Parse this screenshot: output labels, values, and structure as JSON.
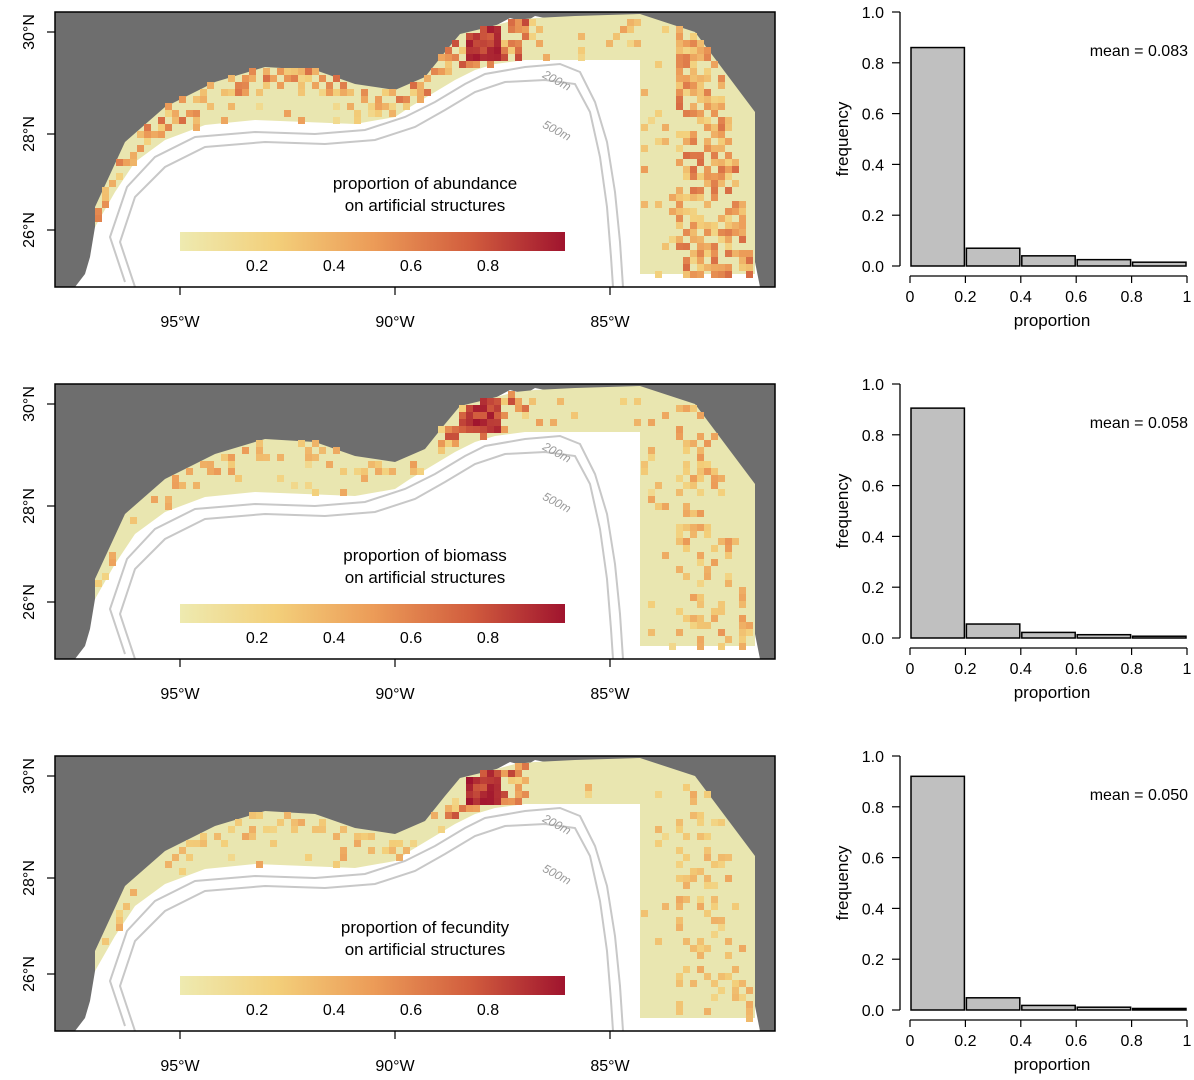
{
  "colors": {
    "land": "#6e6e6e",
    "shelf_base": "#e9e6b0",
    "contour": "#c8c8c8",
    "bar_fill": "#c0c0c0",
    "bar_stroke": "#000000",
    "scale": [
      "#eeeab0",
      "#f3cf7a",
      "#ec9c58",
      "#d25e3e",
      "#a0142e"
    ]
  },
  "contours": {
    "c200": "200m",
    "c500": "500m"
  },
  "map_axes": {
    "x_ticks": [
      "95°W",
      "90°W",
      "85°W"
    ],
    "y_ticks": [
      "30°N",
      "28°N",
      "26°N"
    ]
  },
  "hist_axes": {
    "x_ticks": [
      "0",
      "0.2",
      "0.4",
      "0.6",
      "0.8",
      "1"
    ],
    "y_ticks": [
      "1.0",
      "0.8",
      "0.6",
      "0.4",
      "0.2",
      "0.0"
    ],
    "xlabel": "proportion",
    "ylabel": "frequency"
  },
  "colorbar_ticks": [
    "0.2",
    "0.4",
    "0.6",
    "0.8"
  ],
  "panels": [
    {
      "legend_line1": "proportion of abundance",
      "legend_line2": "on artificial structures",
      "mean_label": "mean = 0.083"
    },
    {
      "legend_line1": "proportion of biomass",
      "legend_line2": "on artificial structures",
      "mean_label": "mean = 0.058"
    },
    {
      "legend_line1": "proportion of fecundity",
      "legend_line2": "on artificial structures",
      "mean_label": "mean = 0.050"
    }
  ],
  "chart_data": [
    {
      "type": "heatmap",
      "xlabel": "",
      "ylabel": "",
      "x_range_lon": [
        -98.5,
        -81.5
      ],
      "y_range_lat": [
        25,
        30.6
      ],
      "colorbar_range": [
        0,
        1
      ],
      "colorbar_ticks": [
        0.2,
        0.4,
        0.6,
        0.8
      ]
    },
    {
      "type": "bar",
      "categories": [
        "0-0.2",
        "0.2-0.4",
        "0.4-0.6",
        "0.6-0.8",
        "0.8-1"
      ],
      "values": [
        0.86,
        0.07,
        0.04,
        0.025,
        0.015
      ],
      "xlabel": "proportion",
      "ylabel": "frequency",
      "xlim": [
        0,
        1
      ],
      "ylim": [
        0,
        1.0
      ],
      "annotation": "mean = 0.083"
    },
    {
      "type": "heatmap",
      "xlabel": "",
      "ylabel": "",
      "x_range_lon": [
        -98.5,
        -81.5
      ],
      "y_range_lat": [
        25,
        30.6
      ],
      "colorbar_range": [
        0,
        1
      ],
      "colorbar_ticks": [
        0.2,
        0.4,
        0.6,
        0.8
      ]
    },
    {
      "type": "bar",
      "categories": [
        "0-0.2",
        "0.2-0.4",
        "0.4-0.6",
        "0.6-0.8",
        "0.8-1"
      ],
      "values": [
        0.905,
        0.055,
        0.022,
        0.013,
        0.007
      ],
      "xlabel": "proportion",
      "ylabel": "frequency",
      "xlim": [
        0,
        1
      ],
      "ylim": [
        0,
        1.0
      ],
      "annotation": "mean = 0.058"
    },
    {
      "type": "heatmap",
      "xlabel": "",
      "ylabel": "",
      "x_range_lon": [
        -98.5,
        -81.5
      ],
      "y_range_lat": [
        25,
        30.6
      ],
      "colorbar_range": [
        0,
        1
      ],
      "colorbar_ticks": [
        0.2,
        0.4,
        0.6,
        0.8
      ]
    },
    {
      "type": "bar",
      "categories": [
        "0-0.2",
        "0.2-0.4",
        "0.4-0.6",
        "0.6-0.8",
        "0.8-1"
      ],
      "values": [
        0.92,
        0.048,
        0.018,
        0.011,
        0.006
      ],
      "xlabel": "proportion",
      "ylabel": "frequency",
      "xlim": [
        0,
        1
      ],
      "ylim": [
        0,
        1.0
      ],
      "annotation": "mean = 0.050"
    }
  ]
}
